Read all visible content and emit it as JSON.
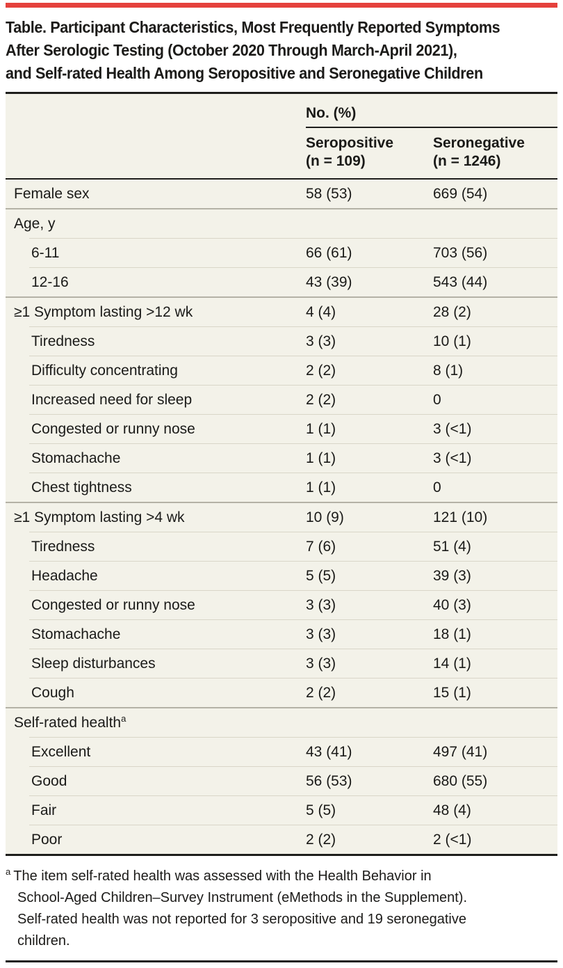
{
  "colors": {
    "accent_red": "#e5413c",
    "table_bg": "#f3f2e9",
    "rule_dark": "#1e1e1c",
    "sep_section": "#b4b2a6",
    "sep_sub": "#d9d6c8",
    "text": "#1a1a18"
  },
  "title_lines": [
    "Table. Participant Characteristics, Most Frequently Reported Symptoms",
    "After Serologic Testing (October 2020 Through March-April 2021),",
    "and Self-rated Health Among Seropositive and Seronegative Children"
  ],
  "table": {
    "spanner": "No. (%)",
    "columns": [
      {
        "line1": "Seropositive",
        "line2": "(n = 109)"
      },
      {
        "line1": "Seronegative",
        "line2": "(n = 1246)"
      }
    ],
    "rows": [
      {
        "label": "Female sex",
        "indent": 0,
        "sep": "none",
        "seropositive": "58 (53)",
        "seronegative": "669 (54)"
      },
      {
        "label": "Age, y",
        "indent": 0,
        "sep": "section",
        "seropositive": "",
        "seronegative": ""
      },
      {
        "label": "6-11",
        "indent": 1,
        "sep": "sub",
        "seropositive": "66 (61)",
        "seronegative": "703 (56)"
      },
      {
        "label": "12-16",
        "indent": 1,
        "sep": "sub",
        "seropositive": "43 (39)",
        "seronegative": "543 (44)"
      },
      {
        "label": "≥1 Symptom lasting >12 wk",
        "indent": 0,
        "sep": "section",
        "seropositive": "4 (4)",
        "seronegative": "28 (2)"
      },
      {
        "label": "Tiredness",
        "indent": 1,
        "sep": "sub",
        "seropositive": "3 (3)",
        "seronegative": "10 (1)"
      },
      {
        "label": "Difficulty concentrating",
        "indent": 1,
        "sep": "sub",
        "seropositive": "2 (2)",
        "seronegative": "8 (1)"
      },
      {
        "label": "Increased need for sleep",
        "indent": 1,
        "sep": "sub",
        "seropositive": "2 (2)",
        "seronegative": "0"
      },
      {
        "label": "Congested or runny nose",
        "indent": 1,
        "sep": "sub",
        "seropositive": "1 (1)",
        "seronegative": "3 (<1)"
      },
      {
        "label": "Stomachache",
        "indent": 1,
        "sep": "sub",
        "seropositive": "1 (1)",
        "seronegative": "3 (<1)"
      },
      {
        "label": "Chest tightness",
        "indent": 1,
        "sep": "sub",
        "seropositive": "1 (1)",
        "seronegative": "0"
      },
      {
        "label": "≥1 Symptom lasting >4 wk",
        "indent": 0,
        "sep": "section",
        "seropositive": "10 (9)",
        "seronegative": "121 (10)"
      },
      {
        "label": "Tiredness",
        "indent": 1,
        "sep": "sub",
        "seropositive": "7 (6)",
        "seronegative": "51 (4)"
      },
      {
        "label": "Headache",
        "indent": 1,
        "sep": "sub",
        "seropositive": "5 (5)",
        "seronegative": "39 (3)"
      },
      {
        "label": "Congested or runny nose",
        "indent": 1,
        "sep": "sub",
        "seropositive": "3 (3)",
        "seronegative": "40 (3)"
      },
      {
        "label": "Stomachache",
        "indent": 1,
        "sep": "sub",
        "seropositive": "3 (3)",
        "seronegative": "18 (1)"
      },
      {
        "label": "Sleep disturbances",
        "indent": 1,
        "sep": "sub",
        "seropositive": "3 (3)",
        "seronegative": "14 (1)"
      },
      {
        "label": "Cough",
        "indent": 1,
        "sep": "sub",
        "seropositive": "2 (2)",
        "seronegative": "15 (1)"
      },
      {
        "label": "Self-rated health",
        "sup": "a",
        "indent": 0,
        "sep": "section",
        "seropositive": "",
        "seronegative": ""
      },
      {
        "label": "Excellent",
        "indent": 1,
        "sep": "sub",
        "seropositive": "43 (41)",
        "seronegative": "497 (41)"
      },
      {
        "label": "Good",
        "indent": 1,
        "sep": "sub",
        "seropositive": "56 (53)",
        "seronegative": "680 (55)"
      },
      {
        "label": "Fair",
        "indent": 1,
        "sep": "sub",
        "seropositive": "5 (5)",
        "seronegative": "48 (4)"
      },
      {
        "label": "Poor",
        "indent": 1,
        "sep": "sub",
        "seropositive": "2 (2)",
        "seronegative": "2 (<1)"
      }
    ]
  },
  "footnote": {
    "marker": "a",
    "lines": [
      "The item self-rated health was assessed with the Health Behavior in",
      "School-Aged Children–Survey Instrument (eMethods in the Supplement).",
      "Self-rated health was not reported for 3 seropositive and 19 seronegative",
      "children."
    ]
  }
}
